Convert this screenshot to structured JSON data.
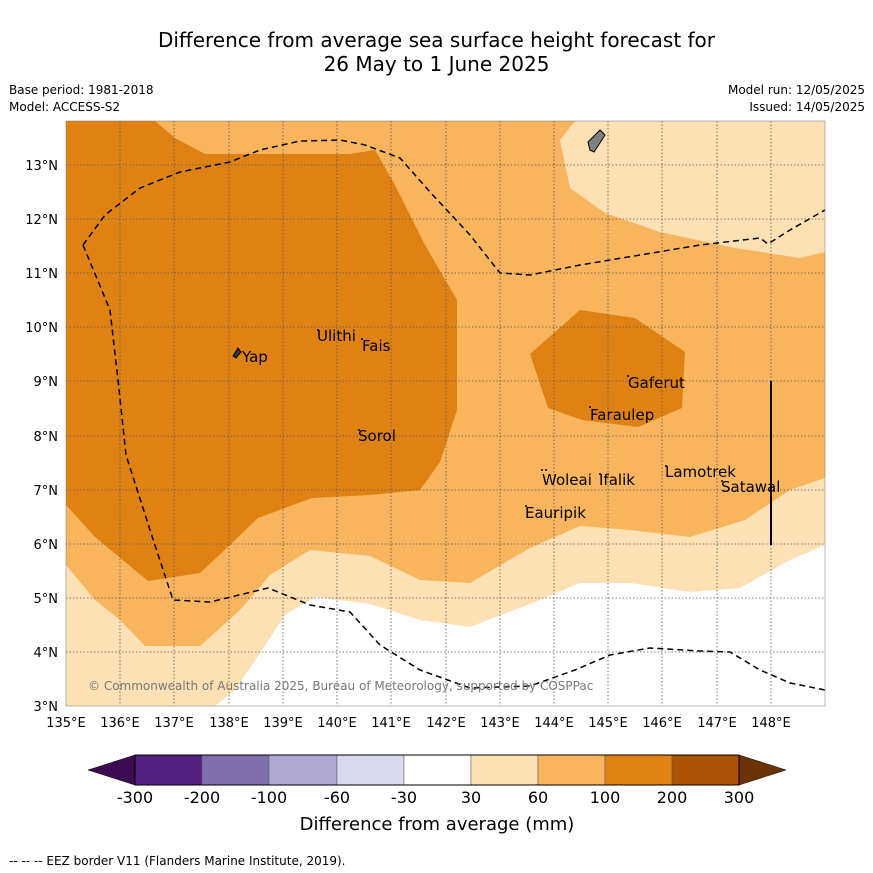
{
  "header": {
    "title_line1": "Difference from average sea surface height forecast for",
    "title_line2": "26 May to 1 June 2025",
    "base_period": "Base period: 1981-2018",
    "model": "Model: ACCESS-S2",
    "model_run": "Model run: 12/05/2025",
    "issued": "Issued: 14/05/2025"
  },
  "map": {
    "copyright": "© Commonwealth of Australia 2025, Bureau of Meteorology, supported by COSPPac",
    "lat_ticks": [
      "3°N",
      "4°N",
      "5°N",
      "6°N",
      "7°N",
      "8°N",
      "9°N",
      "10°N",
      "11°N",
      "12°N",
      "13°N"
    ],
    "lon_ticks": [
      "135°E",
      "136°E",
      "137°E",
      "138°E",
      "139°E",
      "140°E",
      "141°E",
      "142°E",
      "143°E",
      "144°E",
      "145°E",
      "146°E",
      "147°E",
      "148°E"
    ],
    "places": [
      "Yap",
      "Ulithi",
      "Fais",
      "Sorol",
      "Gaferut",
      "Faraulep",
      "Woleai",
      "Ifalik",
      "Lamotrek",
      "Satawal",
      "Eauripik"
    ],
    "colors": {
      "band_30_60": "#fde1b5",
      "band_60_100": "#f9b55e",
      "band_100_200": "#e08213",
      "eez_line": "#000000",
      "grid": "#555555"
    }
  },
  "colorbar": {
    "label": "Difference from average (mm)",
    "ticks": [
      "-300",
      "-200",
      "-100",
      "-60",
      "-30",
      "30",
      "60",
      "100",
      "200",
      "300"
    ],
    "colors": [
      "#3c0b52",
      "#53217f",
      "#7f70ad",
      "#aea8d2",
      "#d9d9ec",
      "#ffffff",
      "#fde1b5",
      "#f9b55e",
      "#e08213",
      "#ab5205",
      "#6b3205"
    ]
  },
  "footer": {
    "eez_note": "--  --  -- EEZ border V11 (Flanders Marine Institute, 2019)."
  }
}
